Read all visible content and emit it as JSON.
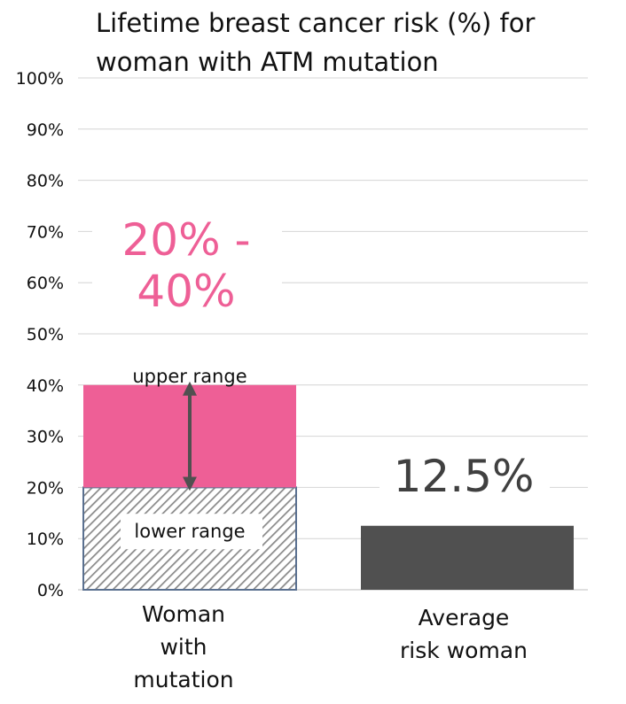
{
  "chart_data": {
    "type": "bar",
    "title": "Lifetime breast cancer risk (%) for woman with ATM mutation",
    "categories": [
      "Woman with mutation",
      "Average risk woman"
    ],
    "series": [
      {
        "category": "Woman with mutation",
        "lower": 20,
        "upper": 40,
        "label": "20% - 40%"
      },
      {
        "category": "Average risk woman",
        "value": 12.5,
        "label": "12.5%"
      }
    ],
    "annotations": {
      "upper_label": "upper range",
      "lower_label": "lower range"
    },
    "y_ticks": [
      "0%",
      "10%",
      "20%",
      "30%",
      "40%",
      "50%",
      "60%",
      "70%",
      "80%",
      "90%",
      "100%"
    ],
    "ylim": [
      0,
      100
    ],
    "grid": true,
    "colors": {
      "upper": "#ee5f96",
      "average": "#505050",
      "label_pink": "#ee5f96",
      "label_dark": "#404040",
      "hatch": "#8a8a8a",
      "hatch_border": "#5a7090"
    }
  }
}
